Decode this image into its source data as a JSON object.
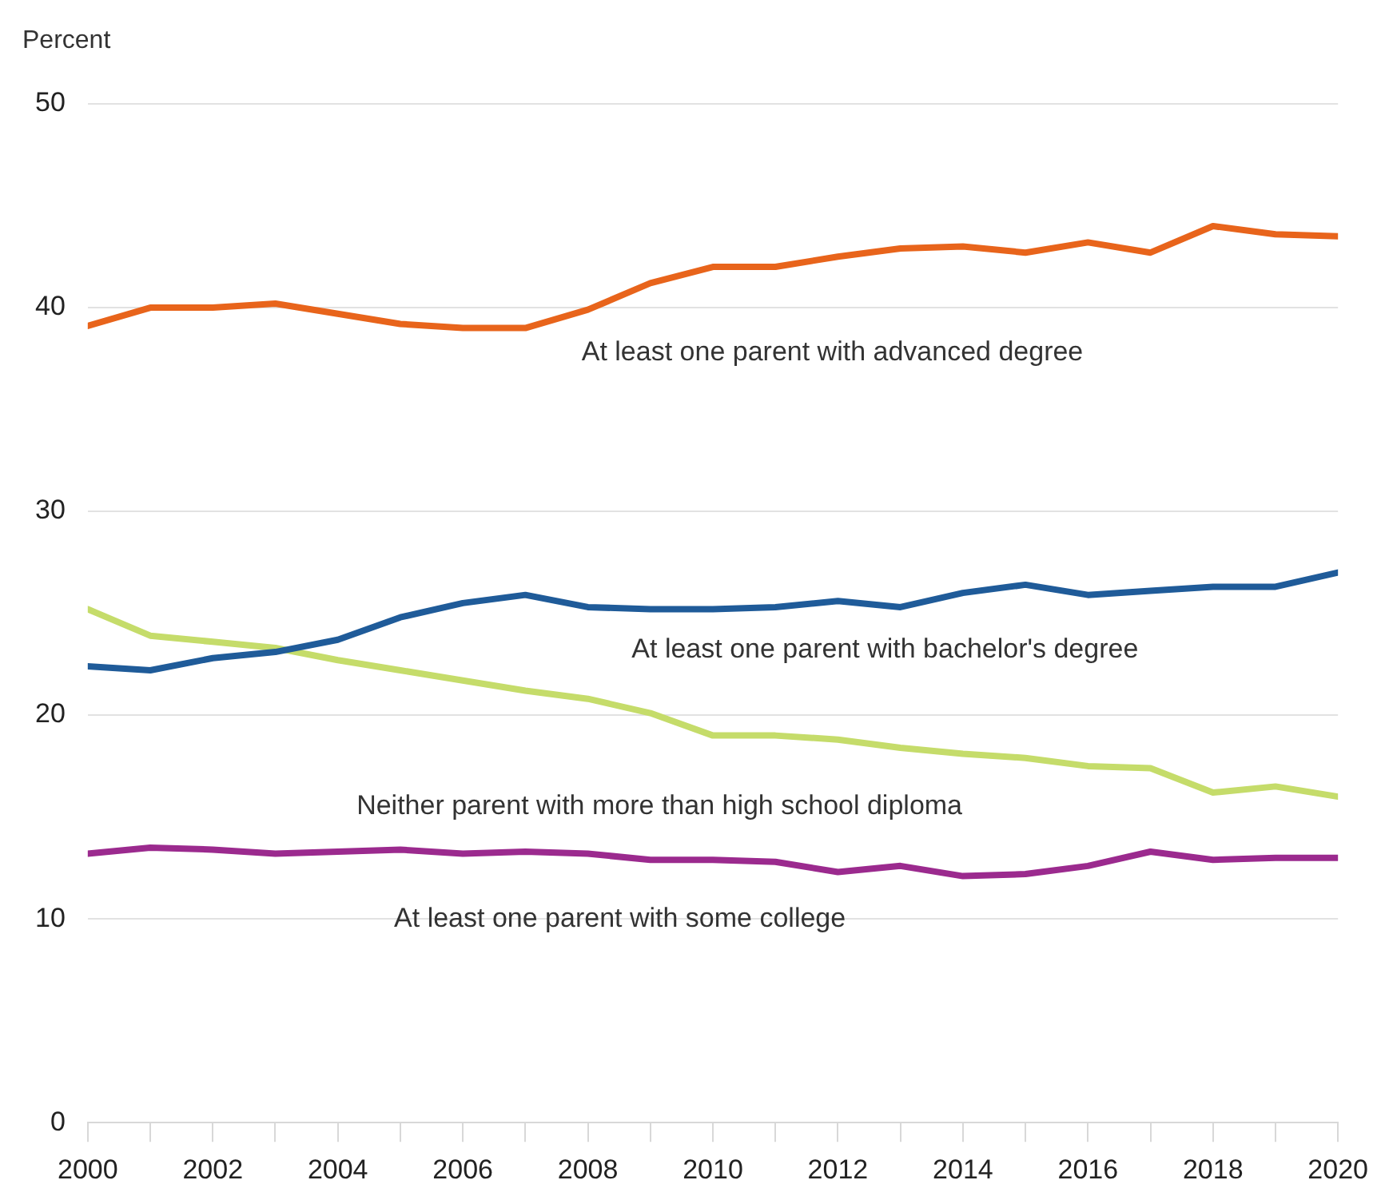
{
  "chart_data": {
    "type": "line",
    "ylabel": "Percent",
    "x": [
      2000,
      2001,
      2002,
      2003,
      2004,
      2005,
      2006,
      2007,
      2008,
      2009,
      2010,
      2011,
      2012,
      2013,
      2014,
      2015,
      2016,
      2017,
      2018,
      2019,
      2020
    ],
    "series": [
      {
        "name": "At least one parent with advanced degree",
        "color": "#e8641b",
        "values": [
          39.1,
          40.0,
          40.0,
          40.2,
          39.7,
          39.2,
          39.0,
          39.0,
          39.9,
          41.2,
          42.0,
          42.0,
          42.5,
          42.9,
          43.0,
          42.7,
          43.2,
          42.7,
          44.0,
          43.6,
          43.5
        ]
      },
      {
        "name": "At least one parent with bachelor's degree",
        "color": "#1f5b99",
        "values": [
          22.4,
          22.2,
          22.8,
          23.1,
          23.7,
          24.8,
          25.5,
          25.9,
          25.3,
          25.2,
          25.2,
          25.3,
          25.6,
          25.3,
          26.0,
          26.4,
          25.9,
          26.1,
          26.3,
          26.3,
          27.0
        ]
      },
      {
        "name": "Neither parent with more than high school diploma",
        "color": "#c5dc6a",
        "values": [
          25.2,
          23.9,
          23.6,
          23.3,
          22.7,
          22.2,
          21.7,
          21.2,
          20.8,
          20.1,
          19.0,
          19.0,
          18.8,
          18.4,
          18.1,
          17.9,
          17.5,
          17.4,
          16.2,
          16.5,
          16.0
        ]
      },
      {
        "name": "At least one parent with some college",
        "color": "#9b2a8e",
        "values": [
          13.2,
          13.5,
          13.4,
          13.2,
          13.3,
          13.4,
          13.2,
          13.3,
          13.2,
          12.9,
          12.9,
          12.8,
          12.3,
          12.6,
          12.1,
          12.2,
          12.6,
          13.3,
          12.9,
          13.0,
          13.0
        ]
      }
    ],
    "xlim": [
      2000,
      2020
    ],
    "xticks": [
      2000,
      {
        "value": 2001,
        "label": null
      },
      2002,
      {
        "value": 2003,
        "label": null
      },
      2004,
      {
        "value": 2005,
        "label": null
      },
      2006,
      {
        "value": 2007,
        "label": null
      },
      2008,
      {
        "value": 2009,
        "label": null
      },
      2010,
      {
        "value": 2011,
        "label": null
      },
      2012,
      {
        "value": 2013,
        "label": null
      },
      2014,
      {
        "value": 2015,
        "label": null
      },
      2016,
      {
        "value": 2017,
        "label": null
      },
      2018,
      {
        "value": 2019,
        "label": null
      },
      2020
    ],
    "ylim": [
      0,
      50
    ],
    "yticks": [
      0,
      10,
      20,
      30,
      40,
      50
    ],
    "grid": "y",
    "legend": false,
    "marker": "none",
    "line_style": "solid"
  }
}
